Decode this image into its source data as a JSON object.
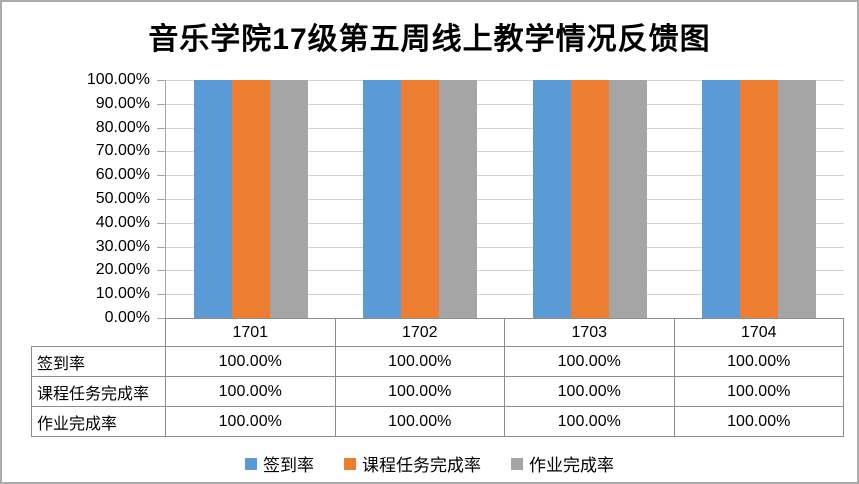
{
  "title": "音乐学院17级第五周线上教学情况反馈图",
  "chart_data": {
    "type": "bar",
    "title": "音乐学院17级第五周线上教学情况反馈图",
    "categories": [
      "1701",
      "1702",
      "1703",
      "1704"
    ],
    "series": [
      {
        "name": "签到率",
        "color": "#5B9BD5",
        "values": [
          100,
          100,
          100,
          100
        ]
      },
      {
        "name": "课程任务完成率",
        "color": "#ED7D31",
        "values": [
          100,
          100,
          100,
          100
        ]
      },
      {
        "name": "作业完成率",
        "color": "#A5A5A5",
        "values": [
          100,
          100,
          100,
          100
        ]
      }
    ],
    "xlabel": "",
    "ylabel": "",
    "ylim": [
      0,
      100
    ],
    "y_ticks": [
      "100.00%",
      "90.00%",
      "80.00%",
      "70.00%",
      "60.00%",
      "50.00%",
      "40.00%",
      "30.00%",
      "20.00%",
      "10.00%",
      "0.00%"
    ],
    "grid": true,
    "legend_position": "bottom"
  },
  "data_table": {
    "rows": [
      {
        "label": "签到率",
        "values": [
          "100.00%",
          "100.00%",
          "100.00%",
          "100.00%"
        ]
      },
      {
        "label": "课程任务完成率",
        "values": [
          "100.00%",
          "100.00%",
          "100.00%",
          "100.00%"
        ]
      },
      {
        "label": "作业完成率",
        "values": [
          "100.00%",
          "100.00%",
          "100.00%",
          "100.00%"
        ]
      }
    ]
  },
  "colors": {
    "gridline": "#D2D2D2",
    "table_border": "#8C8C8C",
    "frame_border": "#ABABAB"
  }
}
